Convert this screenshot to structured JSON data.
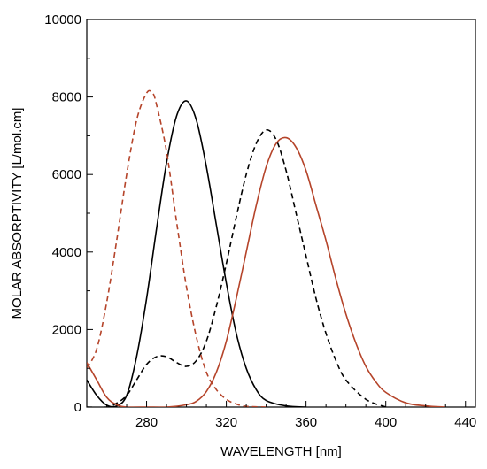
{
  "chart_data": {
    "type": "line",
    "title": "",
    "xlabel": "WAVELENGTH [nm]",
    "ylabel": "MOLAR ABSORPTIVITY [L/mol.cm]",
    "xlim": [
      250,
      445
    ],
    "ylim": [
      0,
      10000
    ],
    "xticks": [
      280,
      320,
      360,
      400,
      440
    ],
    "yticks": [
      0,
      2000,
      4000,
      6000,
      8000,
      10000
    ],
    "grid": false,
    "legend": "none",
    "series": [
      {
        "color": "#000000",
        "dash": "solid",
        "x": [
          250,
          255,
          260,
          265,
          270,
          275,
          280,
          285,
          290,
          295,
          300,
          305,
          310,
          315,
          320,
          325,
          330,
          335,
          340,
          350,
          360
        ],
        "y": [
          700,
          300,
          50,
          30,
          300,
          1300,
          2800,
          4600,
          6300,
          7500,
          7900,
          7400,
          6200,
          4700,
          3200,
          1900,
          1000,
          450,
          170,
          30,
          0
        ]
      },
      {
        "color": "#000000",
        "dash": "dashed",
        "x": [
          250,
          260,
          265,
          270,
          275,
          280,
          285,
          290,
          295,
          300,
          305,
          310,
          315,
          320,
          325,
          330,
          335,
          340,
          345,
          350,
          355,
          360,
          365,
          370,
          375,
          380,
          390,
          400
        ],
        "y": [
          0,
          0,
          100,
          300,
          700,
          1100,
          1300,
          1300,
          1150,
          1050,
          1200,
          1700,
          2600,
          3700,
          4900,
          6000,
          6800,
          7150,
          6900,
          6100,
          5000,
          3900,
          2800,
          1900,
          1200,
          700,
          200,
          0
        ]
      },
      {
        "color": "#b5442a",
        "dash": "dashed",
        "x": [
          250,
          255,
          260,
          265,
          270,
          275,
          280,
          283,
          285,
          290,
          295,
          300,
          305,
          310,
          315,
          320,
          325,
          330,
          340
        ],
        "y": [
          1000,
          1500,
          2700,
          4300,
          6000,
          7400,
          8100,
          8100,
          7800,
          6600,
          4800,
          3100,
          1800,
          900,
          450,
          200,
          80,
          20,
          0
        ]
      },
      {
        "color": "#b5442a",
        "dash": "solid",
        "x": [
          250,
          255,
          260,
          265,
          270,
          280,
          290,
          300,
          305,
          310,
          315,
          320,
          325,
          330,
          335,
          340,
          345,
          350,
          355,
          360,
          365,
          370,
          375,
          380,
          385,
          390,
          395,
          400,
          410,
          420,
          430
        ],
        "y": [
          1150,
          700,
          250,
          60,
          0,
          0,
          0,
          60,
          150,
          400,
          900,
          1700,
          2800,
          4000,
          5200,
          6200,
          6800,
          6950,
          6700,
          6100,
          5200,
          4300,
          3300,
          2400,
          1650,
          1050,
          650,
          380,
          110,
          30,
          0
        ]
      }
    ]
  }
}
